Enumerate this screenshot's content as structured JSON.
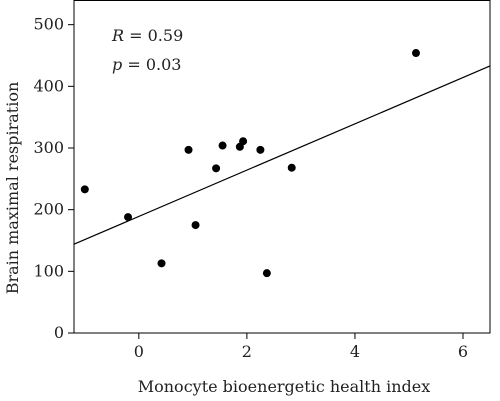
{
  "chart_data": {
    "type": "scatter",
    "xlabel": "Monocyte bioenergetic health index",
    "ylabel": "Brain maximal respiration",
    "xlim": [
      -1.2,
      6.5
    ],
    "ylim": [
      0,
      540
    ],
    "xticks": [
      0,
      2,
      4,
      6
    ],
    "yticks": [
      0,
      100,
      200,
      300,
      400,
      500
    ],
    "grid": false,
    "points": [
      {
        "x": -1.0,
        "y": 233
      },
      {
        "x": -0.2,
        "y": 188
      },
      {
        "x": 0.42,
        "y": 113
      },
      {
        "x": 0.92,
        "y": 297
      },
      {
        "x": 1.05,
        "y": 175
      },
      {
        "x": 1.43,
        "y": 267
      },
      {
        "x": 1.55,
        "y": 304
      },
      {
        "x": 1.87,
        "y": 302
      },
      {
        "x": 1.93,
        "y": 311
      },
      {
        "x": 2.25,
        "y": 297
      },
      {
        "x": 2.37,
        "y": 97
      },
      {
        "x": 2.83,
        "y": 268
      },
      {
        "x": 5.13,
        "y": 454
      }
    ],
    "fit_line": {
      "x": [
        -1.2,
        6.5
      ],
      "y": [
        144,
        433
      ]
    },
    "annotations": {
      "r_label": "R = 0.59",
      "p_label": "p = 0.03"
    }
  }
}
